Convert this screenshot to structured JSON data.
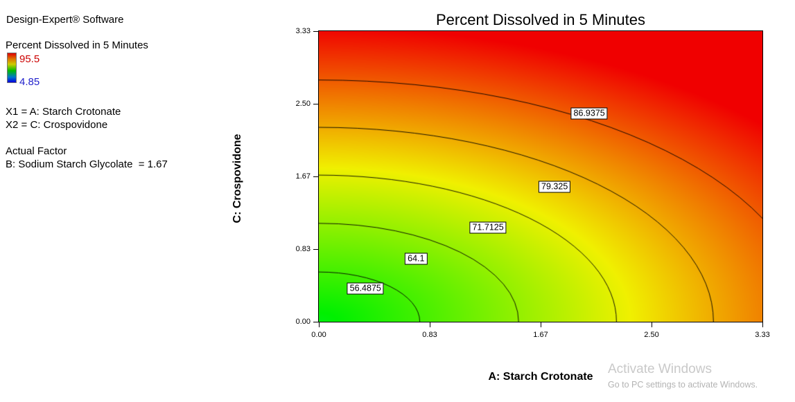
{
  "window": {
    "background": "#ffffff"
  },
  "sidebar": {
    "app_title": "Design-Expert® Software",
    "response_name": "Percent Dissolved in 5 Minutes",
    "legend_max": "95.5",
    "legend_min": "4.85",
    "legend_max_color": "#cc0000",
    "legend_min_color": "#2222cc",
    "x1": "X1 = A: Starch Crotonate",
    "x2": "X2 = C: Crospovidone",
    "actual_factor_heading": "Actual Factor",
    "actual_factor_value": "B: Sodium Starch Glycolate  = 1.67"
  },
  "watermark": {
    "line1": "Activate Windows",
    "line2": "Go to PC settings to activate Windows."
  },
  "chart_data": {
    "type": "heatmap",
    "title": "Percent Dissolved in 5 Minutes",
    "xlabel": "A: Starch Crotonate",
    "ylabel": "C: Crospovidone",
    "xlim": [
      0,
      3.33
    ],
    "ylim": [
      0,
      3.33
    ],
    "zlim": [
      4.85,
      95.5
    ],
    "x_ticks": [
      "0.00",
      "0.83",
      "1.67",
      "2.50",
      "3.33"
    ],
    "y_ticks": [
      "0.00",
      "0.83",
      "1.67",
      "2.50",
      "3.33"
    ],
    "grid": false,
    "legend_position": "left-panel",
    "colormap_stops": [
      "#0000f0",
      "#00f0f0",
      "#00f000",
      "#f0f000",
      "#f00000"
    ],
    "contours": [
      {
        "level": 56.4875,
        "label": "56.4875",
        "label_x": 0.35,
        "label_y": 0.38
      },
      {
        "level": 64.1,
        "label": "64.1",
        "label_x": 0.73,
        "label_y": 0.72
      },
      {
        "level": 71.7125,
        "label": "71.7125",
        "label_x": 1.27,
        "label_y": 1.08
      },
      {
        "level": 79.325,
        "label": "79.325",
        "label_x": 1.77,
        "label_y": 1.55
      },
      {
        "level": 86.9375,
        "label": "86.9375",
        "label_x": 2.03,
        "label_y": 2.39
      }
    ],
    "surface_model": {
      "description": "v = base + slope*u + quad*u^2 where u = sqrt((x/x_stretch)^2 + y^2)",
      "base": 48.78,
      "slope": 13.458,
      "quad": 0.1145,
      "x_stretch": 1.33
    }
  }
}
